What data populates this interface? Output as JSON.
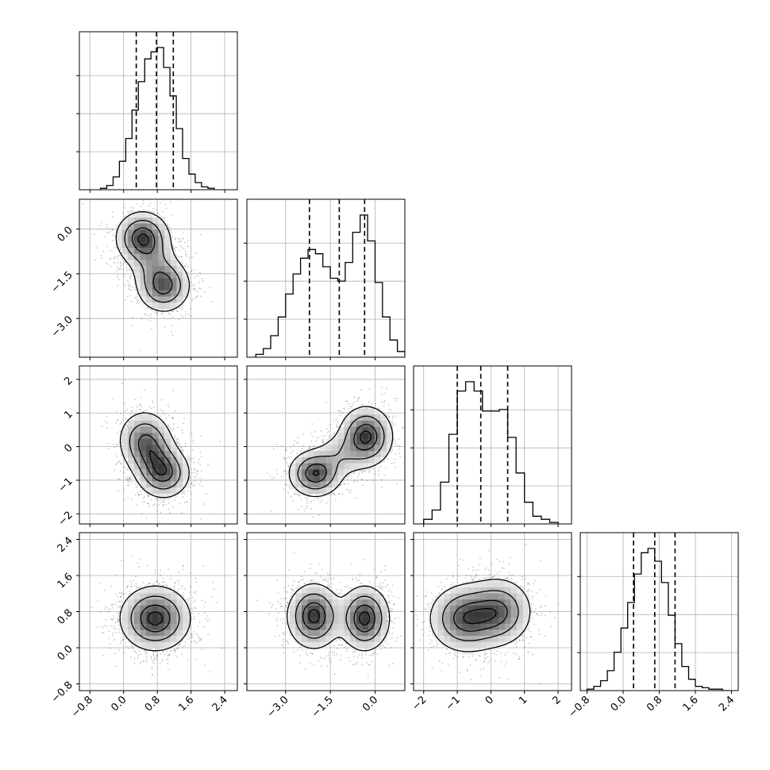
{
  "chart_data": {
    "type": "corner",
    "grid": true,
    "parameters": [
      {
        "index": 0,
        "range": [
          -1.05,
          2.7
        ],
        "ticks": [
          -0.8,
          0.0,
          0.8,
          1.6,
          2.4
        ],
        "tick_labels": [
          "−0.8",
          "0.0",
          "0.8",
          "1.6",
          "2.4"
        ],
        "quantiles": [
          0.3,
          0.78,
          1.18
        ],
        "hist": {
          "edges": [
            -0.55,
            -0.4,
            -0.25,
            -0.1,
            0.05,
            0.2,
            0.35,
            0.5,
            0.65,
            0.8,
            0.95,
            1.1,
            1.25,
            1.4,
            1.55,
            1.7,
            1.85,
            2.0,
            2.15
          ],
          "counts": [
            1,
            3,
            9,
            20,
            36,
            56,
            76,
            92,
            97,
            100,
            86,
            66,
            43,
            22,
            11,
            5,
            2,
            1
          ]
        }
      },
      {
        "index": 1,
        "range": [
          -4.3,
          1.0
        ],
        "ticks": [
          -3.0,
          -1.5,
          0.0
        ],
        "tick_labels": [
          "−3.0",
          "−1.5",
          "0.0"
        ],
        "quantiles": [
          -2.2,
          -1.2,
          -0.35
        ],
        "hist": {
          "edges": [
            -4.0,
            -3.75,
            -3.5,
            -3.25,
            -3.0,
            -2.75,
            -2.5,
            -2.25,
            -2.0,
            -1.75,
            -1.5,
            -1.25,
            -1.0,
            -0.75,
            -0.5,
            -0.25,
            0.0,
            0.25,
            0.5,
            0.75,
            1.0
          ],
          "counts": [
            2,
            6,
            15,
            28,
            44,
            58,
            69,
            75,
            72,
            63,
            55,
            53,
            66,
            87,
            99,
            81,
            52,
            28,
            12,
            4
          ]
        }
      },
      {
        "index": 2,
        "range": [
          -2.3,
          2.4
        ],
        "ticks": [
          -2,
          -1,
          0,
          1,
          2
        ],
        "tick_labels": [
          "−2",
          "−1",
          "0",
          "1",
          "2"
        ],
        "quantiles": [
          -1.0,
          -0.3,
          0.5
        ],
        "hist": {
          "edges": [
            -2.0,
            -1.75,
            -1.5,
            -1.25,
            -1.0,
            -0.75,
            -0.5,
            -0.25,
            0.0,
            0.25,
            0.5,
            0.75,
            1.0,
            1.25,
            1.5,
            1.75,
            2.0
          ],
          "counts": [
            3,
            9,
            27,
            58,
            86,
            92,
            86,
            73,
            73,
            74,
            56,
            33,
            14,
            5,
            3,
            1
          ]
        }
      },
      {
        "index": 3,
        "range": [
          -0.95,
          2.55
        ],
        "ticks": [
          -0.8,
          0.0,
          0.8,
          1.6,
          2.4
        ],
        "tick_labels": [
          "−0.8",
          "0.0",
          "0.8",
          "1.6",
          "2.4"
        ],
        "quantiles": [
          0.23,
          0.7,
          1.15
        ],
        "hist": {
          "edges": [
            -0.8,
            -0.65,
            -0.5,
            -0.35,
            -0.2,
            -0.05,
            0.1,
            0.25,
            0.4,
            0.55,
            0.7,
            0.85,
            1.0,
            1.15,
            1.3,
            1.45,
            1.6,
            1.75,
            1.9,
            2.05,
            2.2,
            2.35
          ],
          "counts": [
            1,
            3,
            7,
            14,
            27,
            44,
            62,
            82,
            97,
            100,
            91,
            76,
            53,
            33,
            17,
            8,
            3,
            2,
            1,
            1,
            0
          ]
        }
      }
    ],
    "pairs": [
      {
        "x": 0,
        "y": 1,
        "blobs": [
          {
            "cx": 0.45,
            "cy": -0.3,
            "sx": 0.32,
            "sy": 0.45,
            "w": 1.0
          },
          {
            "cx": 0.95,
            "cy": -1.9,
            "sx": 0.32,
            "sy": 0.45,
            "w": 0.9
          },
          {
            "cx": 0.7,
            "cy": -1.1,
            "sx": 0.3,
            "sy": 0.45,
            "w": 0.35
          }
        ]
      },
      {
        "x": 0,
        "y": 2,
        "blobs": [
          {
            "cx": 0.5,
            "cy": 0.2,
            "sx": 0.32,
            "sy": 0.45,
            "w": 0.85
          },
          {
            "cx": 0.95,
            "cy": -0.8,
            "sx": 0.32,
            "sy": 0.38,
            "w": 1.0
          },
          {
            "cx": 0.72,
            "cy": -0.3,
            "sx": 0.3,
            "sy": 0.38,
            "w": 0.5
          }
        ]
      },
      {
        "x": 0,
        "y": 3,
        "blobs": [
          {
            "cx": 0.75,
            "cy": 0.65,
            "sx": 0.42,
            "sy": 0.36,
            "w": 1.0
          }
        ]
      },
      {
        "x": 1,
        "y": 2,
        "blobs": [
          {
            "cx": -2.0,
            "cy": -0.8,
            "sx": 0.45,
            "sy": 0.35,
            "w": 0.95
          },
          {
            "cx": -0.3,
            "cy": 0.3,
            "sx": 0.45,
            "sy": 0.45,
            "w": 1.0
          },
          {
            "cx": -1.15,
            "cy": -0.25,
            "sx": 0.45,
            "sy": 0.35,
            "w": 0.3
          }
        ]
      },
      {
        "x": 1,
        "y": 3,
        "blobs": [
          {
            "cx": -2.05,
            "cy": 0.7,
            "sx": 0.45,
            "sy": 0.36,
            "w": 1.0
          },
          {
            "cx": -0.35,
            "cy": 0.65,
            "sx": 0.42,
            "sy": 0.36,
            "w": 1.0
          }
        ]
      },
      {
        "x": 2,
        "y": 3,
        "blobs": [
          {
            "cx": -0.75,
            "cy": 0.65,
            "sx": 0.55,
            "sy": 0.38,
            "w": 1.0
          },
          {
            "cx": 0.25,
            "cy": 0.8,
            "sx": 0.5,
            "sy": 0.38,
            "w": 0.85
          }
        ]
      }
    ],
    "contour_levels": [
      0.14,
      0.4,
      0.72,
      0.93
    ]
  }
}
